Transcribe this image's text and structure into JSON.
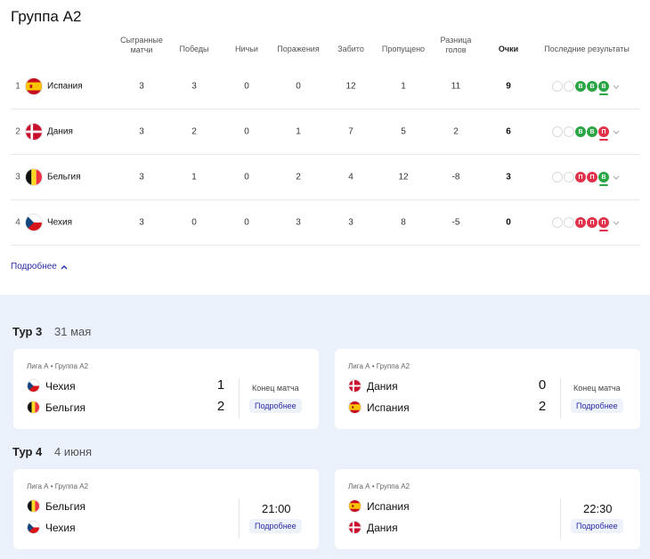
{
  "group": {
    "title": "Группа А2"
  },
  "columns": {
    "played": "Сыгранные матчи",
    "wins": "Победы",
    "draws": "Ничьи",
    "losses": "Поражения",
    "scored": "Забито",
    "conceded": "Пропущено",
    "diff": "Разница голов",
    "points": "Очки",
    "form": "Последние результаты"
  },
  "standings": [
    {
      "pos": "1",
      "flag": "spain",
      "team": "Испания",
      "played": "3",
      "wins": "3",
      "draws": "0",
      "losses": "0",
      "scored": "12",
      "conceded": "1",
      "diff": "11",
      "points": "9",
      "form": [
        "",
        "",
        "В",
        "В",
        "В"
      ]
    },
    {
      "pos": "2",
      "flag": "denmark",
      "team": "Дания",
      "played": "3",
      "wins": "2",
      "draws": "0",
      "losses": "1",
      "scored": "7",
      "conceded": "5",
      "diff": "2",
      "points": "6",
      "form": [
        "",
        "",
        "В",
        "В",
        "П"
      ]
    },
    {
      "pos": "3",
      "flag": "belgium",
      "team": "Бельгия",
      "played": "3",
      "wins": "1",
      "draws": "0",
      "losses": "2",
      "scored": "4",
      "conceded": "12",
      "diff": "-8",
      "points": "3",
      "form": [
        "",
        "",
        "П",
        "П",
        "В"
      ]
    },
    {
      "pos": "4",
      "flag": "czechia",
      "team": "Чехия",
      "played": "3",
      "wins": "0",
      "draws": "0",
      "losses": "3",
      "scored": "3",
      "conceded": "8",
      "diff": "-5",
      "points": "0",
      "form": [
        "",
        "",
        "П",
        "П",
        "П"
      ]
    }
  ],
  "more_label": "Подробнее",
  "tours": [
    {
      "label": "Тур 3",
      "date": "31 мая",
      "matches": [
        {
          "league": "Лига А • Группа А2",
          "home": "Чехия",
          "home_flag": "czechia",
          "away": "Бельгия",
          "away_flag": "belgium",
          "home_score": "1",
          "away_score": "2",
          "status": "Конец матча",
          "time": "",
          "details": "Подробнее"
        },
        {
          "league": "Лига А • Группа А2",
          "home": "Дания",
          "home_flag": "denmark",
          "away": "Испания",
          "away_flag": "spain",
          "home_score": "0",
          "away_score": "2",
          "status": "Конец матча",
          "time": "",
          "details": "Подробнее"
        }
      ]
    },
    {
      "label": "Тур 4",
      "date": "4 июня",
      "matches": [
        {
          "league": "Лига А • Группа А2",
          "home": "Бельгия",
          "home_flag": "belgium",
          "away": "Чехия",
          "away_flag": "czechia",
          "home_score": "",
          "away_score": "",
          "status": "",
          "time": "21:00",
          "details": "Подробнее"
        },
        {
          "league": "Лига А • Группа А2",
          "home": "Испания",
          "home_flag": "spain",
          "away": "Дания",
          "away_flag": "denmark",
          "home_score": "",
          "away_score": "",
          "status": "",
          "time": "22:30",
          "details": "Подробнее"
        }
      ]
    }
  ],
  "colors": {
    "win": "#2aa645",
    "loss": "#e0334b",
    "link": "#2a2aa8",
    "section_bg": "#eaf1fb"
  }
}
